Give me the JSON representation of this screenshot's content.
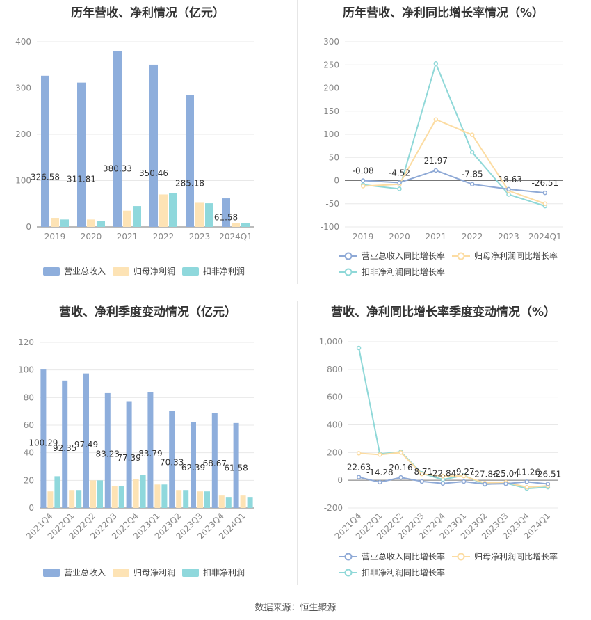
{
  "colors": {
    "revenue": "#8eaedc",
    "parent_profit": "#fde3b5",
    "deducted_profit": "#8fd8dc",
    "rev_line": "#8ea9d6",
    "parent_line": "#fcdca2",
    "deducted_line": "#8fd8d8"
  },
  "source": "数据来源：恒生聚源",
  "chart_data": [
    {
      "type": "bar",
      "title": "历年营收、净利情况（亿元）",
      "categories": [
        "2019",
        "2020",
        "2021",
        "2022",
        "2023",
        "2024Q1"
      ],
      "ylim": [
        0,
        400
      ],
      "yticks": [
        "0",
        "100",
        "200",
        "300",
        "400"
      ],
      "series": [
        {
          "name": "营业总收入",
          "values": [
            326.58,
            311.81,
            380.33,
            350.46,
            285.18,
            61.58
          ]
        },
        {
          "name": "归母净利润",
          "values": [
            18,
            16,
            35,
            70,
            52,
            9
          ]
        },
        {
          "name": "扣非净利润",
          "values": [
            16,
            13,
            45,
            73,
            51,
            8
          ]
        }
      ],
      "data_labels": [
        "326.58",
        "311.81",
        "380.33",
        "350.46",
        "285.18",
        "61.58"
      ],
      "legend": "bottom"
    },
    {
      "type": "line",
      "title": "历年营收、净利同比增长率情况（%）",
      "categories": [
        "2019",
        "2020",
        "2021",
        "2022",
        "2023",
        "2024Q1"
      ],
      "ylim": [
        -100,
        300
      ],
      "yticks": [
        "-100",
        "-50",
        "0",
        "50",
        "100",
        "150",
        "200",
        "250",
        "300"
      ],
      "series": [
        {
          "name": "营业总收入同比增长率",
          "values": [
            -0.08,
            -4.52,
            21.97,
            -7.85,
            -18.63,
            -26.51
          ]
        },
        {
          "name": "归母净利润同比增长率",
          "values": [
            -12,
            -8,
            132,
            99,
            -22,
            -50
          ]
        },
        {
          "name": "扣非净利润同比增长率",
          "values": [
            -9,
            -18,
            253,
            61,
            -30,
            -55
          ]
        }
      ],
      "data_labels": [
        "-0.08",
        "-4.52",
        "21.97",
        "-7.85",
        "-18.63",
        "-26.51"
      ],
      "legend": "bottom"
    },
    {
      "type": "bar",
      "title": "营收、净利季度变动情况（亿元）",
      "categories": [
        "2021Q4",
        "2022Q1",
        "2022Q2",
        "2022Q3",
        "2022Q4",
        "2023Q1",
        "2023Q2",
        "2023Q3",
        "2023Q4",
        "2024Q1"
      ],
      "ylim": [
        0,
        120
      ],
      "yticks": [
        "0",
        "20",
        "40",
        "60",
        "80",
        "100",
        "120"
      ],
      "series": [
        {
          "name": "营业总收入",
          "values": [
            100.29,
            92.35,
            97.49,
            83.23,
            77.39,
            83.79,
            70.33,
            62.39,
            68.67,
            61.58
          ]
        },
        {
          "name": "归母净利润",
          "values": [
            12,
            13,
            20,
            16,
            21,
            17,
            13,
            12,
            9,
            9
          ]
        },
        {
          "name": "扣非净利润",
          "values": [
            23,
            13,
            20,
            16,
            24,
            17,
            13,
            12,
            8,
            8
          ]
        }
      ],
      "data_labels": [
        "100.29",
        "92.35",
        "97.49",
        "83.23",
        "77.39",
        "83.79",
        "70.33",
        "62.39",
        "68.67",
        "61.58"
      ],
      "legend": "bottom"
    },
    {
      "type": "line",
      "title": "营收、净利同比增长率季度变动情况（%）",
      "categories": [
        "2021Q4",
        "2022Q1",
        "2022Q2",
        "2022Q3",
        "2022Q4",
        "2023Q1",
        "2023Q2",
        "2023Q3",
        "2023Q4",
        "2024Q1"
      ],
      "ylim": [
        -200,
        1000
      ],
      "yticks": [
        "-200",
        "0",
        "200",
        "400",
        "600",
        "800",
        "1,000"
      ],
      "series": [
        {
          "name": "营业总收入同比增长率",
          "values": [
            22.63,
            -14.28,
            20.16,
            -8.71,
            -22.84,
            -9.27,
            -27.86,
            -25.04,
            -11.26,
            -26.51
          ]
        },
        {
          "name": "归母净利润同比增长率",
          "values": [
            195,
            185,
            200,
            45,
            30,
            30,
            -20,
            -15,
            -50,
            -40
          ]
        },
        {
          "name": "扣非净利润同比增长率",
          "values": [
            955,
            190,
            205,
            50,
            5,
            35,
            -30,
            -20,
            -60,
            -50
          ]
        }
      ],
      "data_labels": [
        "22.63",
        "-14.28",
        "20.16",
        "-8.71",
        "-22.84",
        "-9.27",
        "-27.86",
        "-25.04",
        "-11.26",
        "-26.51"
      ],
      "legend": "bottom"
    }
  ]
}
